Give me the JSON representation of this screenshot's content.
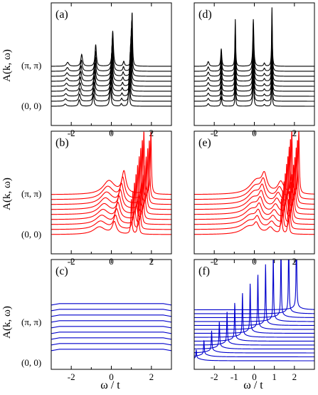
{
  "figure": {
    "ylabel": "A(k, ω)",
    "xlabel_left": "ω  / t",
    "xlabel_right": "ω / t",
    "k_top_label": "(π, π)",
    "k_bottom_label": "(0, 0)"
  },
  "colors": {
    "row1": "#000000",
    "row2": "#ff0000",
    "row3": "#0000cc"
  },
  "chart_data": [
    {
      "panel": "(a)",
      "type": "line",
      "xlim": [
        -3,
        3
      ],
      "xticks": [
        -2,
        0,
        2
      ],
      "xtick_labels": [
        "-2",
        "0",
        "2"
      ],
      "curves": 9,
      "peaks": [
        {
          "w": -2.3,
          "h": 0.1,
          "width": 0.07
        },
        {
          "w": -1.6,
          "h": 0.3,
          "width": 0.05
        },
        {
          "w": -0.9,
          "h": 0.55,
          "width": 0.04
        },
        {
          "w": -0.05,
          "h": 0.9,
          "width": 0.04
        },
        {
          "w": 0.5,
          "h": 0.12,
          "width": 0.04
        },
        {
          "w": 0.88,
          "h": 1.4,
          "width": 0.025
        }
      ],
      "shift": 0.015
    },
    {
      "panel": "(d)",
      "type": "line",
      "xlim": [
        -3,
        3
      ],
      "xticks": [
        -2,
        0,
        2
      ],
      "xtick_labels": [
        "-2",
        "0",
        "2"
      ],
      "curves": 9,
      "peaks": [
        {
          "w": -2.3,
          "h": 0.12,
          "width": 0.05
        },
        {
          "w": -1.65,
          "h": 0.45,
          "width": 0.03
        },
        {
          "w": -0.95,
          "h": 1.2,
          "width": 0.02
        },
        {
          "w": -0.05,
          "h": 1.2,
          "width": 0.03
        },
        {
          "w": 0.5,
          "h": 0.08,
          "width": 0.04
        },
        {
          "w": 0.88,
          "h": 1.5,
          "width": 0.02
        }
      ],
      "shift": 0.0
    },
    {
      "panel": "(b)",
      "type": "line",
      "xlim": [
        -3,
        3
      ],
      "xticks": [
        -2,
        0,
        2
      ],
      "xtick_labels": [
        "-2",
        "0",
        "2"
      ],
      "curves": 9,
      "peaks": [
        {
          "w": -0.6,
          "h": 0.35,
          "width": 0.35
        },
        {
          "w": 0.15,
          "h": 0.55,
          "width": 0.12
        },
        {
          "w": 1.0,
          "h": 1.6,
          "width": 0.03
        },
        {
          "w": 1.35,
          "h": 1.6,
          "width": 0.03
        }
      ],
      "shift": 0.06
    },
    {
      "panel": "(e)",
      "type": "line",
      "xlim": [
        -3,
        3
      ],
      "xticks": [
        -2,
        0,
        2
      ],
      "xtick_labels": [
        "-2",
        "0",
        "2"
      ],
      "curves": 9,
      "peaks": [
        {
          "w": -0.3,
          "h": 0.35,
          "width": 0.4
        },
        {
          "w": 0.1,
          "h": 0.4,
          "width": 0.15
        },
        {
          "w": 0.8,
          "h": 0.3,
          "width": 0.18
        },
        {
          "w": 1.35,
          "h": 1.6,
          "width": 0.03
        },
        {
          "w": 1.7,
          "h": 1.6,
          "width": 0.03
        }
      ],
      "shift": 0.05
    },
    {
      "panel": "(c)",
      "type": "line",
      "xlim": [
        -3,
        3
      ],
      "xticks": [
        -2,
        0,
        2
      ],
      "xtick_labels": [
        "-2",
        "0",
        "2"
      ],
      "curves": 9,
      "flat": true
    },
    {
      "panel": "(f)",
      "type": "line",
      "xlim": [
        -3,
        3
      ],
      "xticks": [
        -2,
        -1,
        0,
        1,
        2
      ],
      "xtick_labels": [
        "-2",
        "-1",
        "0",
        "1",
        "2"
      ],
      "curves": 14,
      "comb": {
        "start": -2.9,
        "end": 2.1,
        "count": 14,
        "hmin": 0.1,
        "hmax": 0.95,
        "width": 0.02
      }
    }
  ]
}
